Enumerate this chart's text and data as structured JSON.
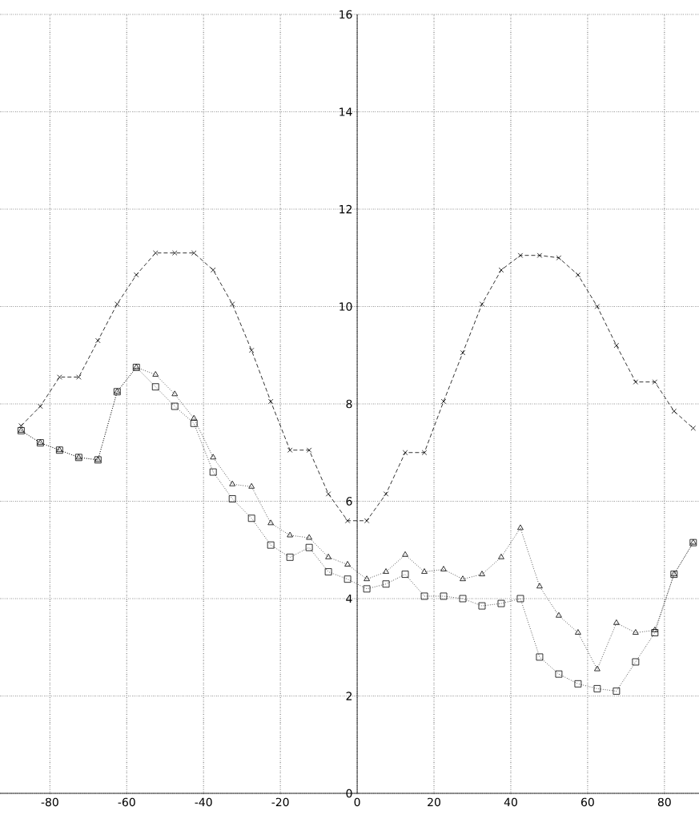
{
  "chart_data": {
    "type": "line",
    "x": [
      -87.5,
      -82.5,
      -77.5,
      -72.5,
      -67.5,
      -62.5,
      -57.5,
      -52.5,
      -47.5,
      -42.5,
      -37.5,
      -32.5,
      -27.5,
      -22.5,
      -17.5,
      -12.5,
      -7.5,
      -2.5,
      2.5,
      7.5,
      12.5,
      17.5,
      22.5,
      27.5,
      32.5,
      37.5,
      42.5,
      47.5,
      52.5,
      57.5,
      62.5,
      67.5,
      72.5,
      77.5,
      82.5,
      87.5
    ],
    "series": [
      {
        "color": "#000000",
        "marker": "cross",
        "line_style": "dashed",
        "values": [
          7.55,
          7.95,
          8.55,
          8.55,
          9.3,
          10.05,
          10.65,
          11.1,
          11.1,
          11.1,
          10.75,
          10.05,
          9.1,
          8.05,
          7.05,
          7.05,
          6.15,
          5.6,
          5.6,
          6.15,
          7.0,
          7.0,
          8.05,
          9.05,
          10.05,
          10.75,
          11.05,
          11.05,
          11.0,
          10.65,
          10.0,
          9.2,
          8.45,
          8.45,
          7.85,
          7.5
        ]
      },
      {
        "color": "#000000",
        "marker": "triangle",
        "line_style": "dotted",
        "values": [
          7.45,
          7.2,
          7.05,
          6.9,
          6.85,
          8.25,
          8.75,
          8.6,
          8.2,
          7.7,
          6.9,
          6.35,
          6.3,
          5.55,
          5.3,
          5.25,
          4.85,
          4.7,
          4.4,
          4.55,
          4.9,
          4.55,
          4.6,
          4.4,
          4.5,
          4.85,
          5.45,
          4.25,
          3.65,
          3.3,
          2.55,
          3.5,
          3.3,
          3.35,
          4.5,
          5.15
        ]
      },
      {
        "color": "#000000",
        "marker": "square",
        "line_style": "dotted",
        "values": [
          7.45,
          7.2,
          7.05,
          6.9,
          6.85,
          8.25,
          8.75,
          8.35,
          7.95,
          7.6,
          6.6,
          6.05,
          5.65,
          5.1,
          4.85,
          5.05,
          4.55,
          4.4,
          4.2,
          4.3,
          4.5,
          4.05,
          4.05,
          4.0,
          3.85,
          3.9,
          4.0,
          2.8,
          2.45,
          2.25,
          2.15,
          2.1,
          2.7,
          3.3,
          4.5,
          5.15
        ]
      }
    ],
    "xlim": [
      -93,
      89
    ],
    "ylim": [
      0,
      16
    ],
    "xticks": [
      -80,
      -60,
      -40,
      -20,
      0,
      20,
      40,
      60,
      80
    ],
    "yticks": [
      0,
      2,
      4,
      6,
      8,
      10,
      12,
      14,
      16
    ],
    "grid": true
  }
}
